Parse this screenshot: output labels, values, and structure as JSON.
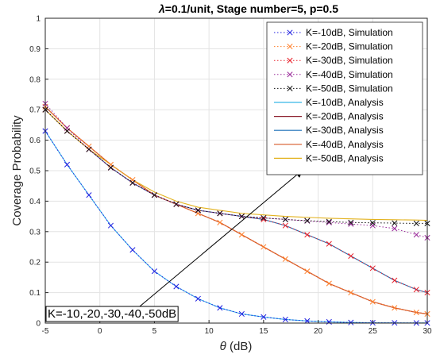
{
  "chart_data": {
    "type": "line",
    "title": "λ=0.1/unit, Stage number=5, p=0.5",
    "title_greek": "λ",
    "title_rest": "=0.1/unit, Stage number=5, p=0.5",
    "xlabel_greek": "θ",
    "xlabel_rest": " (dB)",
    "ylabel": "Coverage Probability",
    "xlim": [
      -5,
      30
    ],
    "ylim": [
      0,
      1
    ],
    "xticks": [
      "-5",
      "0",
      "5",
      "10",
      "15",
      "20",
      "25",
      "30"
    ],
    "yticks": [
      "0",
      "0.1",
      "0.2",
      "0.3",
      "0.4",
      "0.5",
      "0.6",
      "0.7",
      "0.8",
      "0.9",
      "1"
    ],
    "grid": true,
    "legend_position": "top-right",
    "annotation": {
      "text": "K=-10,-20,-30,-40,-50dB",
      "arrow_from": [
        3,
        0.035
      ],
      "arrow_to": [
        18.5,
        0.5
      ]
    },
    "series": [
      {
        "name": "K=-10dB, Simulation",
        "kind": "simulation",
        "color": "#1f1fe0",
        "x": [
          -5,
          -3,
          -1,
          1,
          3,
          5,
          7,
          9,
          11,
          13,
          15,
          17,
          19,
          21,
          23,
          25,
          27,
          29,
          30
        ],
        "y": [
          0.63,
          0.52,
          0.42,
          0.32,
          0.24,
          0.17,
          0.12,
          0.08,
          0.05,
          0.03,
          0.02,
          0.012,
          0.007,
          0.004,
          0.002,
          0.001,
          0.0008,
          0.0005,
          0.0004
        ]
      },
      {
        "name": "K=-20dB, Simulation",
        "kind": "simulation",
        "color": "#ff7f2a",
        "x": [
          -5,
          -3,
          -1,
          1,
          3,
          5,
          7,
          9,
          11,
          13,
          15,
          17,
          19,
          21,
          23,
          25,
          27,
          29,
          30
        ],
        "y": [
          0.71,
          0.64,
          0.58,
          0.52,
          0.47,
          0.42,
          0.39,
          0.36,
          0.33,
          0.29,
          0.25,
          0.21,
          0.17,
          0.13,
          0.1,
          0.07,
          0.05,
          0.035,
          0.03
        ]
      },
      {
        "name": "K=-30dB, Simulation",
        "kind": "simulation",
        "color": "#e8202a",
        "x": [
          -5,
          -3,
          -1,
          1,
          3,
          5,
          7,
          9,
          11,
          13,
          15,
          17,
          19,
          21,
          23,
          25,
          27,
          29,
          30
        ],
        "y": [
          0.7,
          0.63,
          0.57,
          0.51,
          0.46,
          0.42,
          0.39,
          0.37,
          0.36,
          0.35,
          0.34,
          0.32,
          0.29,
          0.26,
          0.22,
          0.18,
          0.14,
          0.11,
          0.1
        ]
      },
      {
        "name": "K=-40dB, Simulation",
        "kind": "simulation",
        "color": "#9a2b9a",
        "x": [
          -5,
          -3,
          -1,
          1,
          3,
          5,
          7,
          9,
          11,
          13,
          15,
          17,
          19,
          21,
          23,
          25,
          27,
          29,
          30
        ],
        "y": [
          0.72,
          0.64,
          0.57,
          0.51,
          0.46,
          0.42,
          0.39,
          0.37,
          0.36,
          0.35,
          0.345,
          0.34,
          0.335,
          0.33,
          0.325,
          0.32,
          0.31,
          0.29,
          0.28
        ]
      },
      {
        "name": "K=-50dB, Simulation",
        "kind": "simulation",
        "color": "#111111",
        "x": [
          -5,
          -3,
          -1,
          1,
          3,
          5,
          7,
          9,
          11,
          13,
          15,
          17,
          19,
          21,
          23,
          25,
          27,
          29,
          30
        ],
        "y": [
          0.7,
          0.63,
          0.57,
          0.51,
          0.46,
          0.42,
          0.39,
          0.37,
          0.36,
          0.35,
          0.345,
          0.34,
          0.336,
          0.333,
          0.33,
          0.329,
          0.328,
          0.327,
          0.327
        ]
      },
      {
        "name": "K=-10dB, Analysis",
        "kind": "analysis",
        "color": "#37b7e8",
        "x": [
          -5,
          -3,
          -1,
          1,
          3,
          5,
          7,
          9,
          11,
          13,
          15,
          17,
          19,
          21,
          23,
          25,
          27,
          29,
          30
        ],
        "y": [
          0.63,
          0.52,
          0.42,
          0.32,
          0.24,
          0.17,
          0.12,
          0.08,
          0.05,
          0.03,
          0.02,
          0.012,
          0.007,
          0.004,
          0.002,
          0.001,
          0.0008,
          0.0005,
          0.0004
        ]
      },
      {
        "name": "K=-20dB, Analysis",
        "kind": "analysis",
        "color": "#8a1a2a",
        "x": [
          -5,
          -3,
          -1,
          1,
          3,
          5,
          7,
          9,
          11,
          13,
          15,
          17,
          19,
          21,
          23,
          25,
          27,
          29,
          30
        ],
        "y": [
          0.71,
          0.64,
          0.58,
          0.52,
          0.47,
          0.42,
          0.39,
          0.36,
          0.33,
          0.29,
          0.25,
          0.21,
          0.17,
          0.13,
          0.1,
          0.07,
          0.05,
          0.035,
          0.03
        ]
      },
      {
        "name": "K=-30dB, Analysis",
        "kind": "analysis",
        "color": "#1a6fb8",
        "x": [
          -5,
          -3,
          -1,
          1,
          3,
          5,
          7,
          9,
          11,
          13,
          15,
          17,
          19,
          21,
          23,
          25,
          27,
          29,
          30
        ],
        "y": [
          0.7,
          0.63,
          0.57,
          0.51,
          0.46,
          0.42,
          0.39,
          0.37,
          0.36,
          0.35,
          0.34,
          0.32,
          0.29,
          0.26,
          0.22,
          0.18,
          0.14,
          0.11,
          0.1
        ]
      },
      {
        "name": "K=-40dB, Analysis",
        "kind": "analysis",
        "color": "#d65a2a",
        "x": [
          -5,
          -3,
          -1,
          1,
          3,
          5,
          7,
          9,
          11,
          13,
          15,
          17,
          19,
          21,
          23,
          25,
          27,
          29,
          30
        ],
        "y": [
          0.71,
          0.64,
          0.58,
          0.52,
          0.47,
          0.42,
          0.39,
          0.36,
          0.33,
          0.29,
          0.25,
          0.21,
          0.17,
          0.13,
          0.1,
          0.07,
          0.05,
          0.035,
          0.03
        ]
      },
      {
        "name": "K=-50dB, Analysis",
        "kind": "analysis",
        "color": "#e3b21e",
        "x": [
          -5,
          -3,
          -1,
          1,
          3,
          5,
          7,
          9,
          11,
          13,
          15,
          17,
          19,
          21,
          23,
          25,
          27,
          29,
          30
        ],
        "y": [
          0.7,
          0.63,
          0.57,
          0.52,
          0.47,
          0.43,
          0.4,
          0.38,
          0.37,
          0.36,
          0.355,
          0.35,
          0.347,
          0.344,
          0.342,
          0.34,
          0.339,
          0.338,
          0.337
        ]
      }
    ]
  }
}
